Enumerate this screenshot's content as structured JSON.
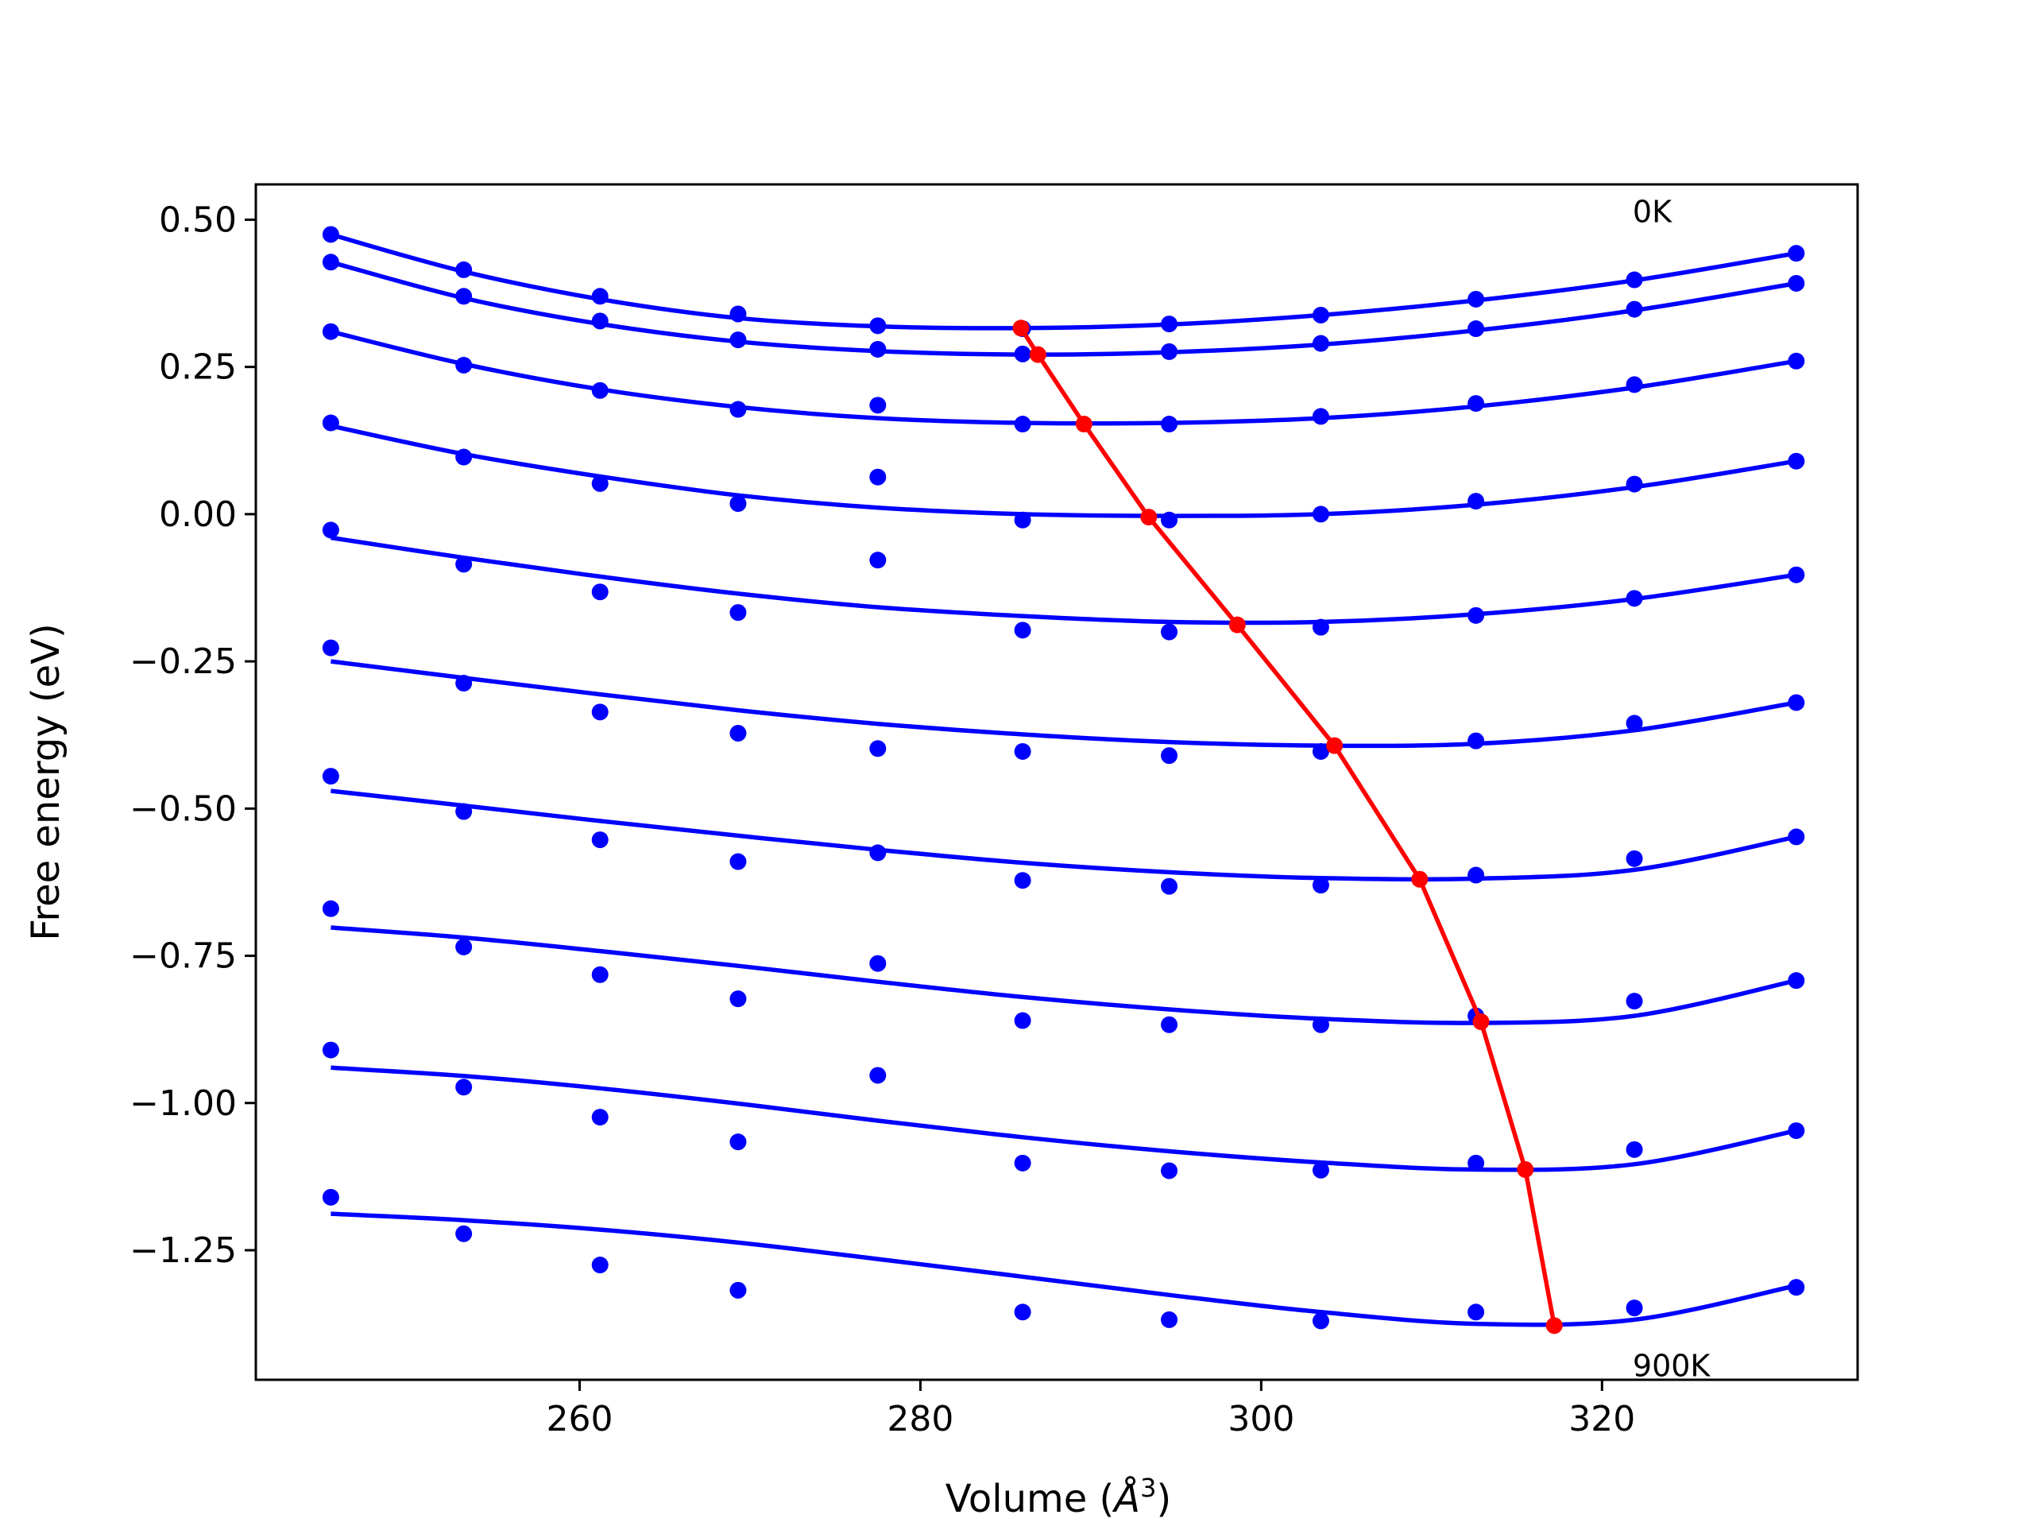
{
  "chart_data": {
    "type": "line",
    "title": "",
    "xlabel": "Volume (",
    "xlabel_math": "Å",
    "xlabel_sup": "3",
    "xlabel_close": ")",
    "ylabel": "Free energy (eV)",
    "xlim": [
      241,
      335
    ],
    "ylim": [
      -1.47,
      0.56
    ],
    "xticks": [
      260,
      280,
      300,
      320
    ],
    "xtick_labels": [
      "260",
      "280",
      "300",
      "320"
    ],
    "yticks": [
      0.5,
      0.25,
      0.0,
      -0.25,
      -0.5,
      -0.75,
      -1.0,
      -1.25
    ],
    "ytick_labels": [
      "0.50",
      "0.25",
      "0.00",
      "−0.25",
      "−0.50",
      "−0.75",
      "−1.00",
      "−1.25"
    ],
    "grid": false,
    "annotations": [
      {
        "text": "0K",
        "x": 321.8,
        "y": 0.515
      },
      {
        "text": "900K",
        "x": 321.8,
        "y": -1.445
      }
    ],
    "volumes": [
      245.4,
      253.2,
      261.2,
      269.3,
      277.5,
      286.0,
      294.6,
      303.5,
      312.6,
      321.9,
      331.4
    ],
    "series": [
      {
        "points": [
          0.475,
          0.415,
          0.37,
          0.34,
          0.32,
          0.315,
          0.323,
          0.338,
          0.365,
          0.398,
          0.443
        ],
        "fit": [
          0.475,
          0.412,
          0.365,
          0.333,
          0.319,
          0.316,
          0.322,
          0.338,
          0.363,
          0.397,
          0.443
        ]
      },
      {
        "points": [
          0.428,
          0.37,
          0.328,
          0.296,
          0.28,
          0.272,
          0.276,
          0.29,
          0.315,
          0.348,
          0.392
        ],
        "fit": [
          0.428,
          0.367,
          0.323,
          0.293,
          0.277,
          0.271,
          0.275,
          0.288,
          0.312,
          0.346,
          0.392
        ]
      },
      {
        "points": [
          0.31,
          0.253,
          0.21,
          0.178,
          0.185,
          0.153,
          0.153,
          0.166,
          0.188,
          0.22,
          0.26
        ],
        "fit": [
          0.31,
          0.255,
          0.212,
          0.182,
          0.163,
          0.155,
          0.155,
          0.163,
          0.183,
          0.215,
          0.26
        ]
      },
      {
        "points": [
          0.155,
          0.097,
          0.052,
          0.018,
          0.063,
          -0.01,
          -0.01,
          0.0,
          0.022,
          0.051,
          0.09
        ],
        "fit": [
          0.15,
          0.102,
          0.064,
          0.032,
          0.011,
          0.0,
          -0.003,
          0.0,
          0.016,
          0.046,
          0.09
        ]
      },
      {
        "points": [
          -0.027,
          -0.085,
          -0.132,
          -0.167,
          -0.078,
          -0.197,
          -0.2,
          -0.192,
          -0.172,
          -0.143,
          -0.103
        ],
        "fit": [
          -0.04,
          -0.074,
          -0.106,
          -0.135,
          -0.158,
          -0.173,
          -0.183,
          -0.183,
          -0.17,
          -0.144,
          -0.103
        ]
      },
      {
        "points": [
          -0.227,
          -0.287,
          -0.336,
          -0.372,
          -0.398,
          -0.403,
          -0.41,
          -0.403,
          -0.385,
          -0.355,
          -0.32
        ],
        "fit": [
          -0.25,
          -0.278,
          -0.306,
          -0.333,
          -0.356,
          -0.374,
          -0.387,
          -0.393,
          -0.39,
          -0.367,
          -0.32
        ]
      },
      {
        "points": [
          -0.445,
          -0.505,
          -0.553,
          -0.59,
          -0.575,
          -0.622,
          -0.632,
          -0.63,
          -0.613,
          -0.585,
          -0.548
        ],
        "fit": [
          -0.47,
          -0.495,
          -0.521,
          -0.546,
          -0.57,
          -0.592,
          -0.608,
          -0.618,
          -0.619,
          -0.604,
          -0.548
        ]
      },
      {
        "points": [
          -0.67,
          -0.735,
          -0.782,
          -0.823,
          -0.763,
          -0.86,
          -0.867,
          -0.867,
          -0.852,
          -0.827,
          -0.792
        ],
        "fit": [
          -0.702,
          -0.719,
          -0.742,
          -0.767,
          -0.794,
          -0.82,
          -0.841,
          -0.857,
          -0.864,
          -0.852,
          -0.792
        ]
      },
      {
        "points": [
          -0.91,
          -0.973,
          -1.024,
          -1.066,
          -0.953,
          -1.102,
          -1.115,
          -1.114,
          -1.102,
          -1.079,
          -1.047
        ],
        "fit": [
          -0.94,
          -0.954,
          -0.975,
          -1.001,
          -1.03,
          -1.058,
          -1.082,
          -1.101,
          -1.113,
          -1.104,
          -1.047
        ]
      },
      {
        "points": [
          -1.16,
          -1.222,
          -1.275,
          -1.318,
          -1.355,
          -1.368,
          -1.37,
          -1.355,
          -1.348,
          -1.313
        ],
        "point_volumes": [
          245.4,
          253.2,
          261.2,
          269.3,
          286.0,
          294.6,
          303.5,
          312.6,
          321.9,
          331.4
        ],
        "fit": [
          -1.188,
          -1.199,
          -1.215,
          -1.237,
          -1.265,
          -1.295,
          -1.326,
          -1.355,
          -1.375,
          -1.368,
          -1.31
        ]
      }
    ],
    "minima_path": {
      "x": [
        285.9,
        286.9,
        289.6,
        293.4,
        298.6,
        304.3,
        309.3,
        312.9,
        315.5,
        317.2
      ],
      "y": [
        0.316,
        0.271,
        0.153,
        -0.005,
        -0.188,
        -0.393,
        -0.62,
        -0.862,
        -1.113,
        -1.378
      ],
      "color": "#ff0000"
    },
    "colors": {
      "series": "#0000ff",
      "minima": "#ff0000",
      "frame": "#000000"
    }
  }
}
